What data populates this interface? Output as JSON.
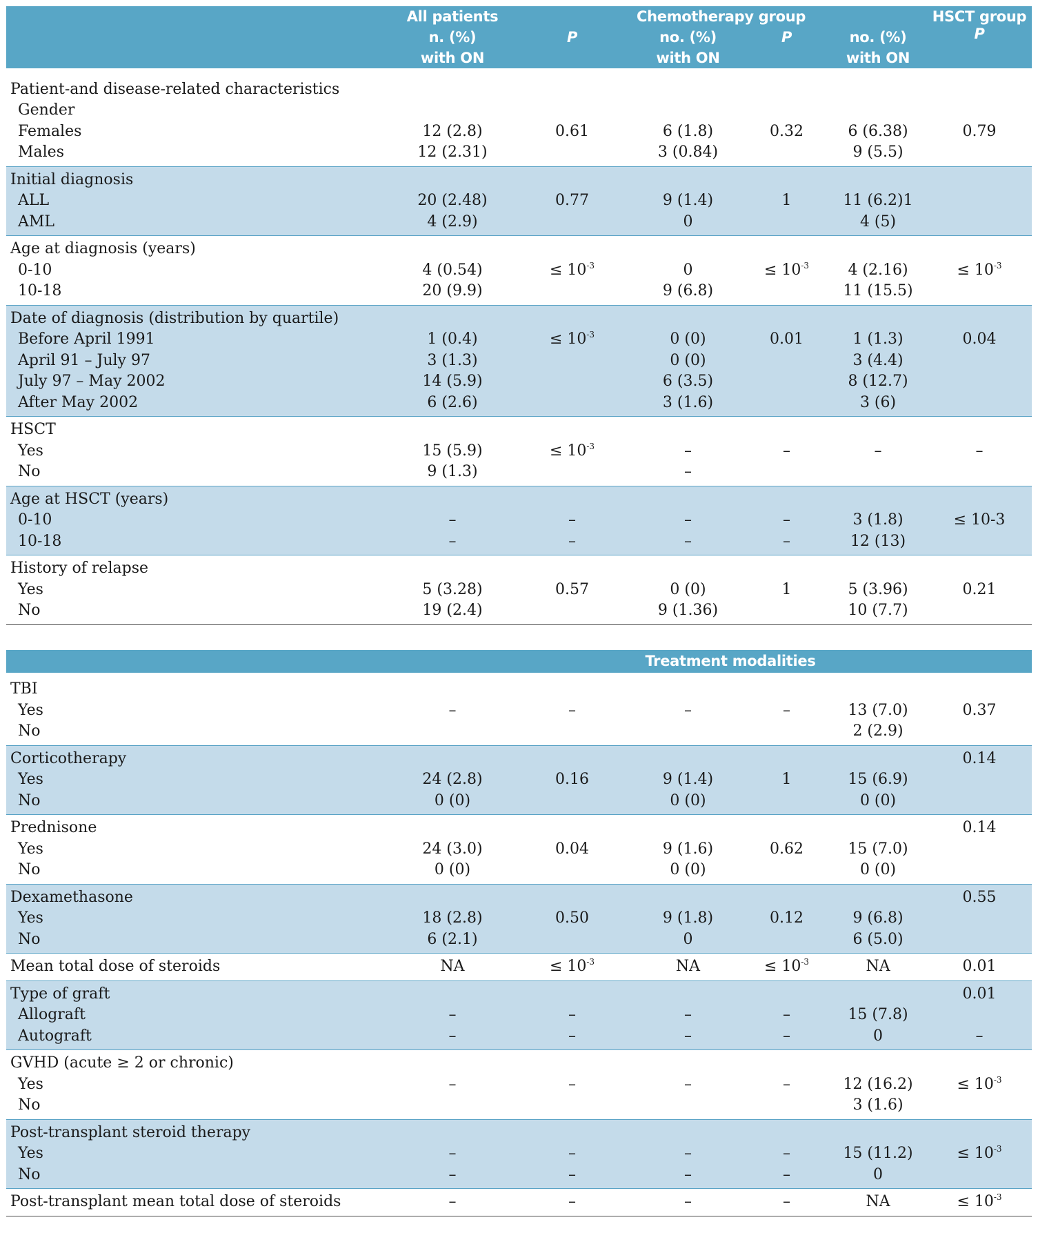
{
  "header": {
    "all_patients": [
      "All patients",
      "n. (%)",
      "with ON"
    ],
    "p": "P",
    "chemo": [
      "Chemotherapy group",
      "no. (%)",
      "with ON"
    ],
    "hsct_counts": [
      "no. (%)",
      "with ON"
    ],
    "hsct_group": "HSCT group"
  },
  "sections": {
    "treatment": "Treatment modalities"
  },
  "rows": {
    "pd_title": "Patient-and disease-related characteristics",
    "gender": "Gender",
    "females": [
      "Females",
      "12 (2.8)",
      "0.61",
      "6 (1.8)",
      "0.32",
      "6 (6.38)",
      "0.79"
    ],
    "males": [
      "Males",
      "12 (2.31)",
      "3 (0.84)",
      "9 (5.5)"
    ],
    "init_dx": "Initial diagnosis",
    "all": [
      "ALL",
      "20 (2.48)",
      "0.77",
      "9 (1.4)",
      "1",
      "11 (6.2)1"
    ],
    "aml": [
      "AML",
      "4 (2.9)",
      "0",
      "4 (5)"
    ],
    "age_dx": "Age at diagnosis (years)",
    "age_0_10": [
      "0-10",
      "4 (0.54)",
      "≤ 10",
      "0",
      "≤ 10",
      "4 (2.16)",
      "≤ 10"
    ],
    "age_10_18": [
      "10-18",
      "20 (9.9)",
      "9 (6.8)",
      "11 (15.5)"
    ],
    "date_dx": "Date of diagnosis (distribution by quartile)",
    "before_1991": [
      "Before April 1991",
      "1 (0.4)",
      "≤ 10",
      "0 (0)",
      "0.01",
      "1 (1.3)",
      "0.04"
    ],
    "apr91_jul97": [
      "April 91 – July 97",
      "3 (1.3)",
      "0 (0)",
      "3 (4.4)"
    ],
    "jul97_may02": [
      "July 97 – May 2002",
      "14 (5.9)",
      "6 (3.5)",
      "8 (12.7)"
    ],
    "after_2002": [
      "After  May 2002",
      "6 (2.6)",
      "3 (1.6)",
      "3 (6)"
    ],
    "hsct": "HSCT",
    "hsct_yes": [
      "Yes",
      "15 (5.9)",
      "≤ 10",
      "–",
      "–",
      "–",
      "–"
    ],
    "hsct_no": [
      "No",
      "9 (1.3)",
      "–"
    ],
    "age_hsct": "Age at HSCT (years)",
    "ah_0_10": [
      "0-10",
      "–",
      "–",
      "–",
      "–",
      "3 (1.8)",
      "≤ 10-3"
    ],
    "ah_10_18": [
      "10-18",
      "–",
      "–",
      "–",
      "–",
      "12 (13)"
    ],
    "relapse": "History of relapse",
    "rel_yes": [
      "Yes",
      "5 (3.28)",
      "0.57",
      "0 (0)",
      "1",
      "5 (3.96)",
      "0.21"
    ],
    "rel_no": [
      "No",
      "19 (2.4)",
      "9 (1.36)",
      "10 (7.7)"
    ],
    "tbi": "TBI",
    "tbi_yes": [
      "Yes",
      "–",
      "–",
      "–",
      "–",
      "13 (7.0)",
      "0.37"
    ],
    "tbi_no": [
      "No",
      "2 (2.9)"
    ],
    "cortico": [
      "Corticotherapy",
      "0.14"
    ],
    "cortico_yes": [
      "Yes",
      "24 (2.8)",
      "0.16",
      "9 (1.4)",
      "1",
      "15 (6.9)"
    ],
    "cortico_no": [
      "No",
      "0 (0)",
      "0 (0)",
      "0 (0)"
    ],
    "pred": [
      "Prednisone",
      "0.14"
    ],
    "pred_yes": [
      "Yes",
      "24 (3.0)",
      "0.04",
      "9 (1.6)",
      "0.62",
      "15 (7.0)"
    ],
    "pred_no": [
      "No",
      "0 (0)",
      "0 (0)",
      "0 (0)"
    ],
    "dexa": [
      "Dexamethasone",
      "0.55"
    ],
    "dexa_yes": [
      "Yes",
      "18 (2.8)",
      "0.50",
      "9 (1.8)",
      "0.12",
      "9 (6.8)"
    ],
    "dexa_no": [
      "No",
      "6 (2.1)",
      "0",
      "6 (5.0)"
    ],
    "mean_dose": [
      "Mean total dose of steroids",
      "NA",
      "≤ 10",
      "NA",
      "≤ 10",
      "NA",
      "0.01"
    ],
    "graft": [
      "Type of graft",
      "0.01"
    ],
    "allograft": [
      "Allograft",
      "–",
      "–",
      "–",
      "–",
      "15 (7.8)"
    ],
    "autograft": [
      "Autograft",
      "–",
      "–",
      "–",
      "–",
      "0",
      "–"
    ],
    "gvhd": "GVHD (acute ≥ 2 or chronic)",
    "gvhd_yes": [
      "Yes",
      "–",
      "–",
      "–",
      "–",
      "12 (16.2)",
      "≤ 10"
    ],
    "gvhd_no": [
      "No",
      "3 (1.6)"
    ],
    "pt_steroid": "Post-transplant steroid therapy",
    "pts_yes": [
      "Yes",
      "–",
      "–",
      "–",
      "–",
      "15 (11.2)",
      "≤ 10"
    ],
    "pts_no": [
      "No",
      "–",
      "–",
      "–",
      "–",
      "0"
    ],
    "pt_mean": [
      "Post-transplant  mean total dose of steroids",
      "–",
      "–",
      "–",
      "–",
      "NA",
      "≤ 10"
    ]
  },
  "exp": "-3"
}
